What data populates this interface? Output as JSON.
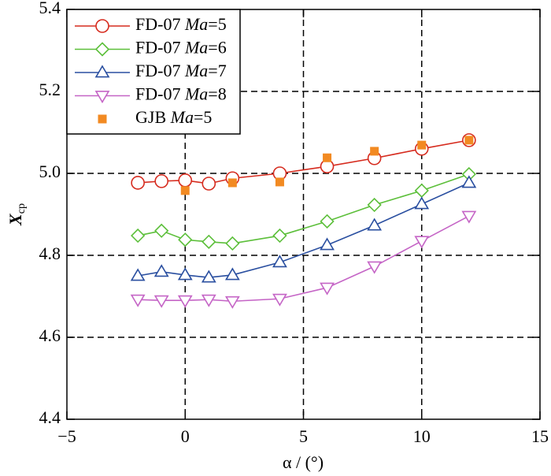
{
  "chart_data": {
    "type": "line",
    "xlabel": "α / (°)",
    "ylabel": "X",
    "ylabel_subscript": "cp",
    "x": [
      -2,
      -1,
      0,
      1,
      2,
      4,
      6,
      8,
      10,
      12
    ],
    "series": [
      {
        "name": "FD-07 Ma=5",
        "color": "#d62b1e",
        "marker": "circle",
        "values": [
          4.977,
          4.981,
          4.983,
          4.975,
          4.988,
          5.0,
          5.017,
          5.037,
          5.06,
          5.081
        ]
      },
      {
        "name": "FD-07 Ma=6",
        "color": "#5cbf3a",
        "marker": "diamond",
        "values": [
          4.848,
          4.86,
          4.838,
          4.833,
          4.829,
          4.848,
          4.883,
          4.923,
          4.958,
          4.998
        ]
      },
      {
        "name": "FD-07 Ma=7",
        "color": "#2a4fa0",
        "marker": "triangle-up",
        "values": [
          4.75,
          4.76,
          4.752,
          4.746,
          4.752,
          4.783,
          4.825,
          4.873,
          4.925,
          4.977
        ]
      },
      {
        "name": "FD-07 Ma=8",
        "color": "#c565c6",
        "marker": "triangle-down",
        "values": [
          4.692,
          4.69,
          4.69,
          4.692,
          4.688,
          4.694,
          4.721,
          4.773,
          4.835,
          4.896
        ]
      },
      {
        "name": "GJB Ma=5",
        "color": "#f28a22",
        "marker": "square",
        "line": false,
        "x": [
          0,
          2,
          4,
          6,
          8,
          10,
          12
        ],
        "values": [
          4.958,
          4.977,
          4.979,
          5.038,
          5.054,
          5.069,
          5.081
        ]
      }
    ],
    "xlim": [
      -5,
      15
    ],
    "xticks": [
      {
        "value": -5,
        "label": "−5"
      },
      0,
      5,
      10,
      15
    ],
    "ylim": [
      4.4,
      5.4
    ],
    "yticks": [
      4.4,
      4.6,
      4.8,
      {
        "value": 5,
        "label": "5.0"
      },
      5.2,
      5.4
    ],
    "grid": true,
    "legend": "upper left"
  }
}
